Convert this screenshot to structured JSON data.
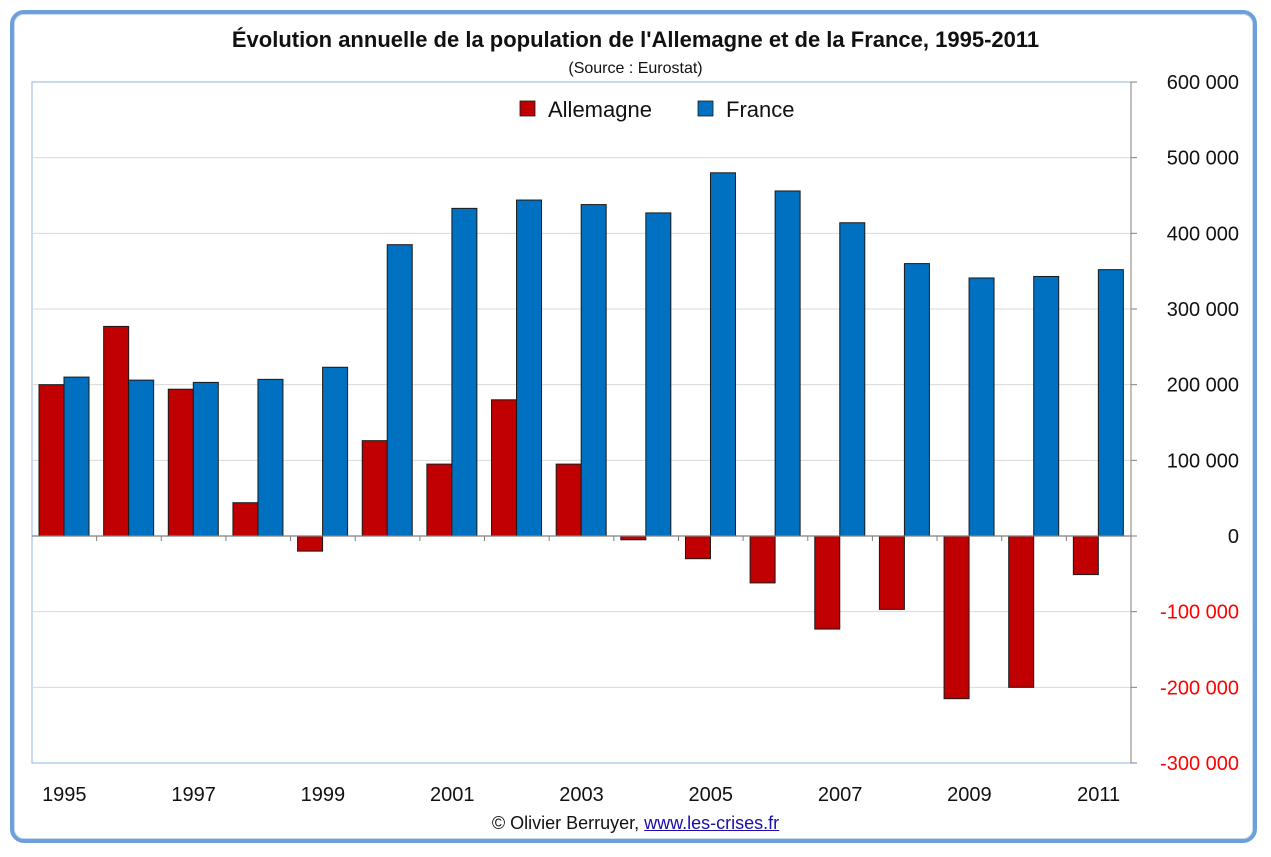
{
  "chart_data": {
    "type": "bar",
    "title": "Évolution annuelle de la population  de l'Allemagne et de la France, 1995-2011",
    "subtitle": "(Source : Eurostat)",
    "categories": [
      "1995",
      "1996",
      "1997",
      "1998",
      "1999",
      "2000",
      "2001",
      "2002",
      "2003",
      "2004",
      "2005",
      "2006",
      "2007",
      "2008",
      "2009",
      "2010",
      "2011"
    ],
    "x_tick_labels": [
      "1995",
      "",
      "1997",
      "",
      "1999",
      "",
      "2001",
      "",
      "2003",
      "",
      "2005",
      "",
      "2007",
      "",
      "2009",
      "",
      "2011"
    ],
    "series": [
      {
        "name": "Allemagne",
        "color": "#c00000",
        "values": [
          200000,
          277000,
          194000,
          44000,
          -20000,
          126000,
          95000,
          180000,
          95000,
          -5000,
          -30000,
          -62000,
          -123000,
          -97000,
          -215000,
          -200000,
          -51000
        ]
      },
      {
        "name": "France",
        "color": "#0070c0",
        "values": [
          210000,
          206000,
          203000,
          207000,
          223000,
          385000,
          433000,
          444000,
          438000,
          427000,
          480000,
          456000,
          414000,
          360000,
          341000,
          343000,
          352000
        ]
      }
    ],
    "y_axis": {
      "position": "right",
      "ylim": [
        -300000,
        600000
      ],
      "ticks": [
        600000,
        500000,
        400000,
        300000,
        200000,
        100000,
        0,
        -100000,
        -200000,
        -300000
      ],
      "tick_labels": [
        "600 000",
        "500 000",
        "400 000",
        "300 000",
        "200 000",
        "100 000",
        "0",
        "-100 000",
        "-200 000",
        "-300 000"
      ],
      "negative_label_color": "#ff0000"
    },
    "grid": true,
    "legend": "top-center"
  },
  "footer": {
    "credit": "© Olivier Berruyer, ",
    "link_text": "www.les-crises.fr"
  }
}
